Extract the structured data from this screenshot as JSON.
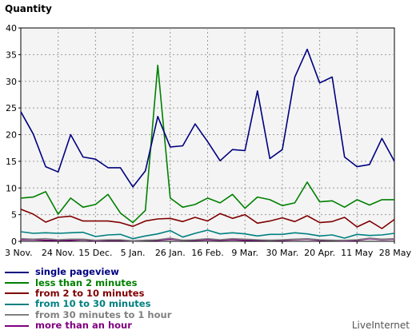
{
  "chart_data": {
    "type": "line",
    "ylabel": "Quantity",
    "xlabel": "",
    "ylim": [
      0,
      40
    ],
    "yticks": [
      0,
      5,
      10,
      15,
      20,
      25,
      30,
      35,
      40
    ],
    "x_tick_labels": [
      {
        "index": 0,
        "label": "3 Nov."
      },
      {
        "index": 3,
        "label": "24 Nov."
      },
      {
        "index": 6,
        "label": "15 Dec."
      },
      {
        "index": 9,
        "label": "5 Jan."
      },
      {
        "index": 12,
        "label": "26 Jan."
      },
      {
        "index": 15,
        "label": "16 Feb."
      },
      {
        "index": 18,
        "label": "9 Mar."
      },
      {
        "index": 21,
        "label": "30 Mar."
      },
      {
        "index": 24,
        "label": "20 Apr."
      },
      {
        "index": 27,
        "label": "11 May"
      },
      {
        "index": 30,
        "label": "28 May"
      }
    ],
    "grid": true,
    "legend_position": "bottom-left",
    "series": [
      {
        "name": "single pageview",
        "color": "#000080",
        "values": [
          24.3,
          20.1,
          14.0,
          13.0,
          20.0,
          15.8,
          15.4,
          13.8,
          13.8,
          10.2,
          13.2,
          23.4,
          17.7,
          17.9,
          22.0,
          18.7,
          15.1,
          17.2,
          17.0,
          28.2,
          15.5,
          17.2,
          30.8,
          36.0,
          29.7,
          30.8,
          15.8,
          14.0,
          14.4,
          19.3,
          15.0
        ]
      },
      {
        "name": "less than 2 minutes",
        "color": "#008000",
        "values": [
          8.1,
          8.3,
          9.3,
          5.1,
          8.1,
          6.4,
          6.9,
          8.8,
          5.3,
          3.5,
          5.8,
          33.0,
          8.1,
          6.4,
          6.9,
          8.1,
          7.2,
          8.8,
          6.2,
          8.3,
          7.8,
          6.7,
          7.2,
          11.1,
          7.4,
          7.6,
          6.4,
          7.8,
          6.8,
          7.8,
          7.8
        ]
      },
      {
        "name": "from 2 to 10 minutes",
        "color": "#800000",
        "values": [
          6.0,
          5.1,
          3.6,
          4.5,
          4.7,
          3.8,
          3.8,
          3.8,
          3.5,
          2.8,
          3.8,
          4.2,
          4.3,
          3.7,
          4.5,
          3.8,
          5.2,
          4.3,
          5.0,
          3.4,
          3.8,
          4.4,
          3.7,
          4.8,
          3.5,
          3.7,
          4.5,
          2.7,
          3.8,
          2.4,
          4.1
        ]
      },
      {
        "name": "from 10 to 30 minutes",
        "color": "#008080",
        "values": [
          1.8,
          1.5,
          1.6,
          1.5,
          1.6,
          1.7,
          0.9,
          1.2,
          1.3,
          0.5,
          1.0,
          1.4,
          2.0,
          0.8,
          1.5,
          2.1,
          1.4,
          1.6,
          1.4,
          1.0,
          1.3,
          1.3,
          1.6,
          1.4,
          1.0,
          1.2,
          0.6,
          1.3,
          1.1,
          1.2,
          1.5
        ]
      },
      {
        "name": "from 30 minutes to 1 hour",
        "color": "#808080",
        "values": [
          0.5,
          0.4,
          0.5,
          0.3,
          0.4,
          0.4,
          0.2,
          0.3,
          0.3,
          0.1,
          0.2,
          0.3,
          0.6,
          0.2,
          0.3,
          0.5,
          0.3,
          0.5,
          0.4,
          0.3,
          0.2,
          0.3,
          0.4,
          0.5,
          0.3,
          0.2,
          0.2,
          0.3,
          0.6,
          0.4,
          0.5
        ]
      },
      {
        "name": "more than an hour",
        "color": "#800080",
        "values": [
          0.3,
          0.3,
          0.2,
          0.2,
          0.2,
          0.3,
          0.1,
          0.2,
          0.2,
          0.1,
          0.2,
          0.2,
          0.4,
          0.2,
          0.2,
          0.3,
          0.2,
          0.3,
          0.2,
          0.2,
          0.2,
          0.2,
          0.3,
          0.4,
          0.2,
          0.2,
          0.1,
          0.2,
          0.5,
          0.3,
          0.4
        ]
      }
    ]
  },
  "watermark": "LiveInternet"
}
